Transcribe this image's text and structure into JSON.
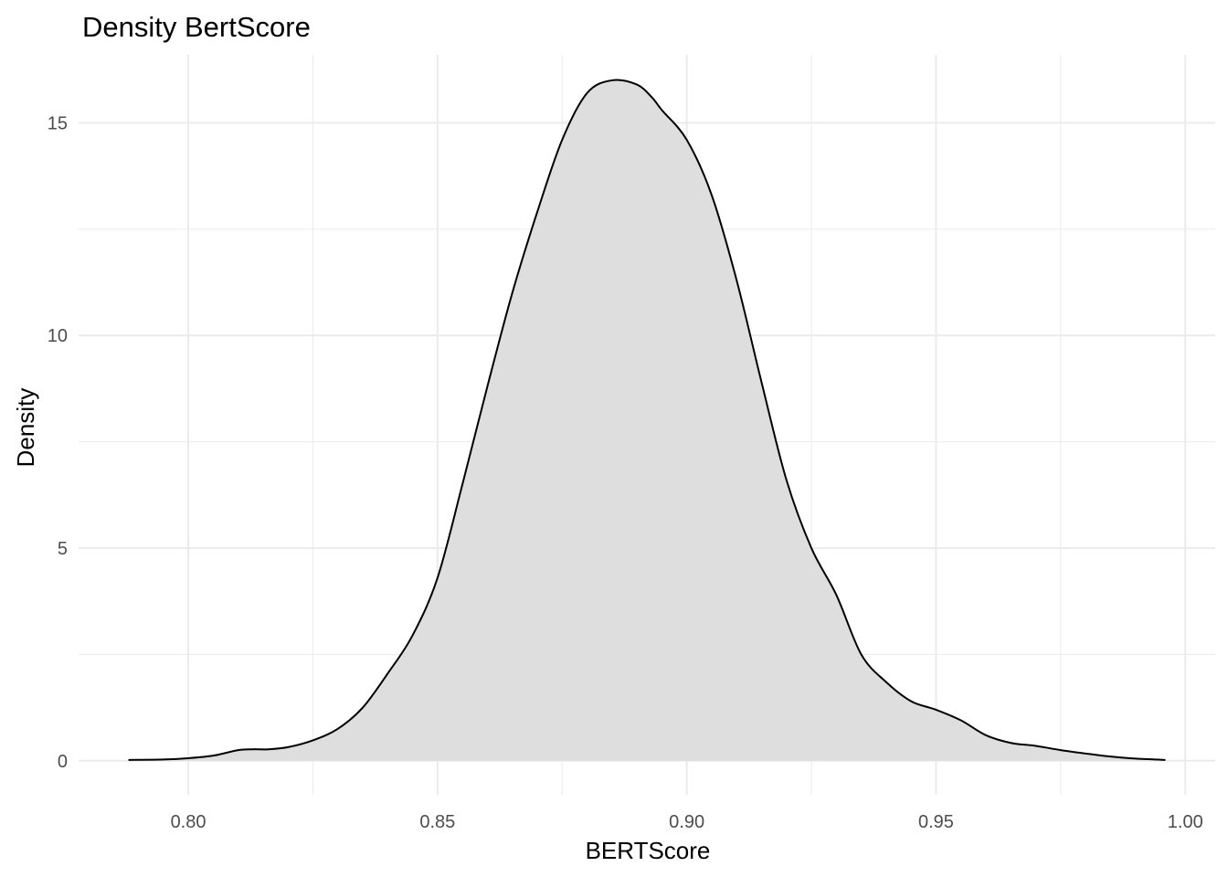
{
  "chart_data": {
    "type": "area",
    "title": "Density BertScore",
    "xlabel": "BERTScore",
    "ylabel": "Density",
    "xlim": [
      0.778,
      1.006
    ],
    "ylim": [
      -0.8,
      16.6
    ],
    "x_ticks": [
      0.8,
      0.85,
      0.9,
      0.95,
      1.0
    ],
    "x_tick_labels": [
      "0.80",
      "0.85",
      "0.90",
      "0.95",
      "1.00"
    ],
    "x_minor_ticks": [
      0.825,
      0.875,
      0.925,
      0.975
    ],
    "y_ticks": [
      0,
      5,
      10,
      15
    ],
    "y_tick_labels": [
      "0",
      "5",
      "10",
      "15"
    ],
    "y_minor_ticks": [
      2.5,
      7.5,
      12.5
    ],
    "grid": true,
    "legend": "none",
    "fill_color": "#dedede",
    "line_color": "#000000",
    "grid_color": "#ebebeb",
    "series": [
      {
        "x": [
          0.788,
          0.795,
          0.8,
          0.805,
          0.81,
          0.813,
          0.816,
          0.82,
          0.825,
          0.83,
          0.835,
          0.84,
          0.845,
          0.85,
          0.855,
          0.86,
          0.865,
          0.87,
          0.875,
          0.88,
          0.885,
          0.89,
          0.893,
          0.895,
          0.9,
          0.905,
          0.91,
          0.915,
          0.92,
          0.925,
          0.93,
          0.935,
          0.94,
          0.945,
          0.95,
          0.955,
          0.96,
          0.965,
          0.97,
          0.975,
          0.98,
          0.985,
          0.99,
          0.996
        ],
        "y": [
          0.02,
          0.03,
          0.06,
          0.12,
          0.25,
          0.27,
          0.27,
          0.32,
          0.48,
          0.75,
          1.25,
          2.05,
          2.95,
          4.3,
          6.5,
          8.8,
          11.0,
          12.9,
          14.6,
          15.7,
          16.0,
          15.9,
          15.6,
          15.3,
          14.6,
          13.3,
          11.3,
          8.9,
          6.6,
          5.0,
          3.9,
          2.5,
          1.85,
          1.4,
          1.2,
          0.95,
          0.6,
          0.42,
          0.35,
          0.25,
          0.17,
          0.1,
          0.05,
          0.02
        ]
      }
    ]
  }
}
